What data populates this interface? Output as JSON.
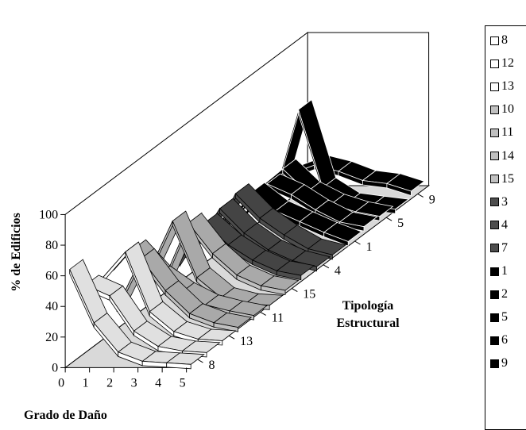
{
  "chart_data": {
    "type": "3d-line",
    "ylabel": "% de Edificios",
    "xlabel": "Grado de Daño",
    "zlabel_line1": "Tipología",
    "zlabel_line2": "Estructural",
    "ylim": [
      0,
      100
    ],
    "yticks": [
      "0",
      "20",
      "40",
      "60",
      "80",
      "100"
    ],
    "xticks": [
      "0",
      "1",
      "2",
      "3",
      "4",
      "5"
    ],
    "depth_ticks": [
      "8",
      "13",
      "11",
      "15",
      "4",
      "1",
      "5",
      "9"
    ],
    "legend_position": "right",
    "series": [
      {
        "name": "8",
        "fill": "#ffffff",
        "values": [
          62,
          27,
          8,
          2,
          1,
          0
        ]
      },
      {
        "name": "12",
        "fill": "#ffffff",
        "values": [
          44,
          37,
          14,
          4,
          1,
          0
        ]
      },
      {
        "name": "13",
        "fill": "#ffffff",
        "values": [
          40,
          58,
          19,
          6,
          1,
          0
        ]
      },
      {
        "name": "10",
        "fill": "#c0c0c0",
        "values": [
          14,
          46,
          25,
          10,
          4,
          1
        ]
      },
      {
        "name": "11",
        "fill": "#c0c0c0",
        "values": [
          44,
          27,
          16,
          8,
          4,
          1
        ]
      },
      {
        "name": "14",
        "fill": "#c0c0c0",
        "values": [
          21,
          55,
          18,
          5,
          1,
          0
        ]
      },
      {
        "name": "15",
        "fill": "#c0c0c0",
        "values": [
          9,
          46,
          26,
          12,
          5,
          2
        ]
      },
      {
        "name": "3",
        "fill": "#4d4d4d",
        "values": [
          13,
          38,
          24,
          14,
          7,
          4
        ]
      },
      {
        "name": "4",
        "fill": "#4d4d4d",
        "values": [
          15,
          40,
          24,
          13,
          6,
          2
        ]
      },
      {
        "name": "7",
        "fill": "#4d4d4d",
        "values": [
          9,
          42,
          26,
          15,
          6,
          2
        ]
      },
      {
        "name": "1",
        "fill": "#000000",
        "values": [
          14,
          35,
          23,
          16,
          9,
          3
        ]
      },
      {
        "name": "2",
        "fill": "#000000",
        "values": [
          12,
          33,
          26,
          16,
          8,
          5
        ]
      },
      {
        "name": "5",
        "fill": "#000000",
        "values": [
          22,
          35,
          20,
          12,
          7,
          4
        ]
      },
      {
        "name": "6",
        "fill": "#000000",
        "values": [
          10,
          66,
          15,
          5,
          3,
          1
        ]
      },
      {
        "name": "9",
        "fill": "#000000",
        "values": [
          16,
          22,
          18,
          12,
          10,
          5
        ]
      }
    ]
  }
}
